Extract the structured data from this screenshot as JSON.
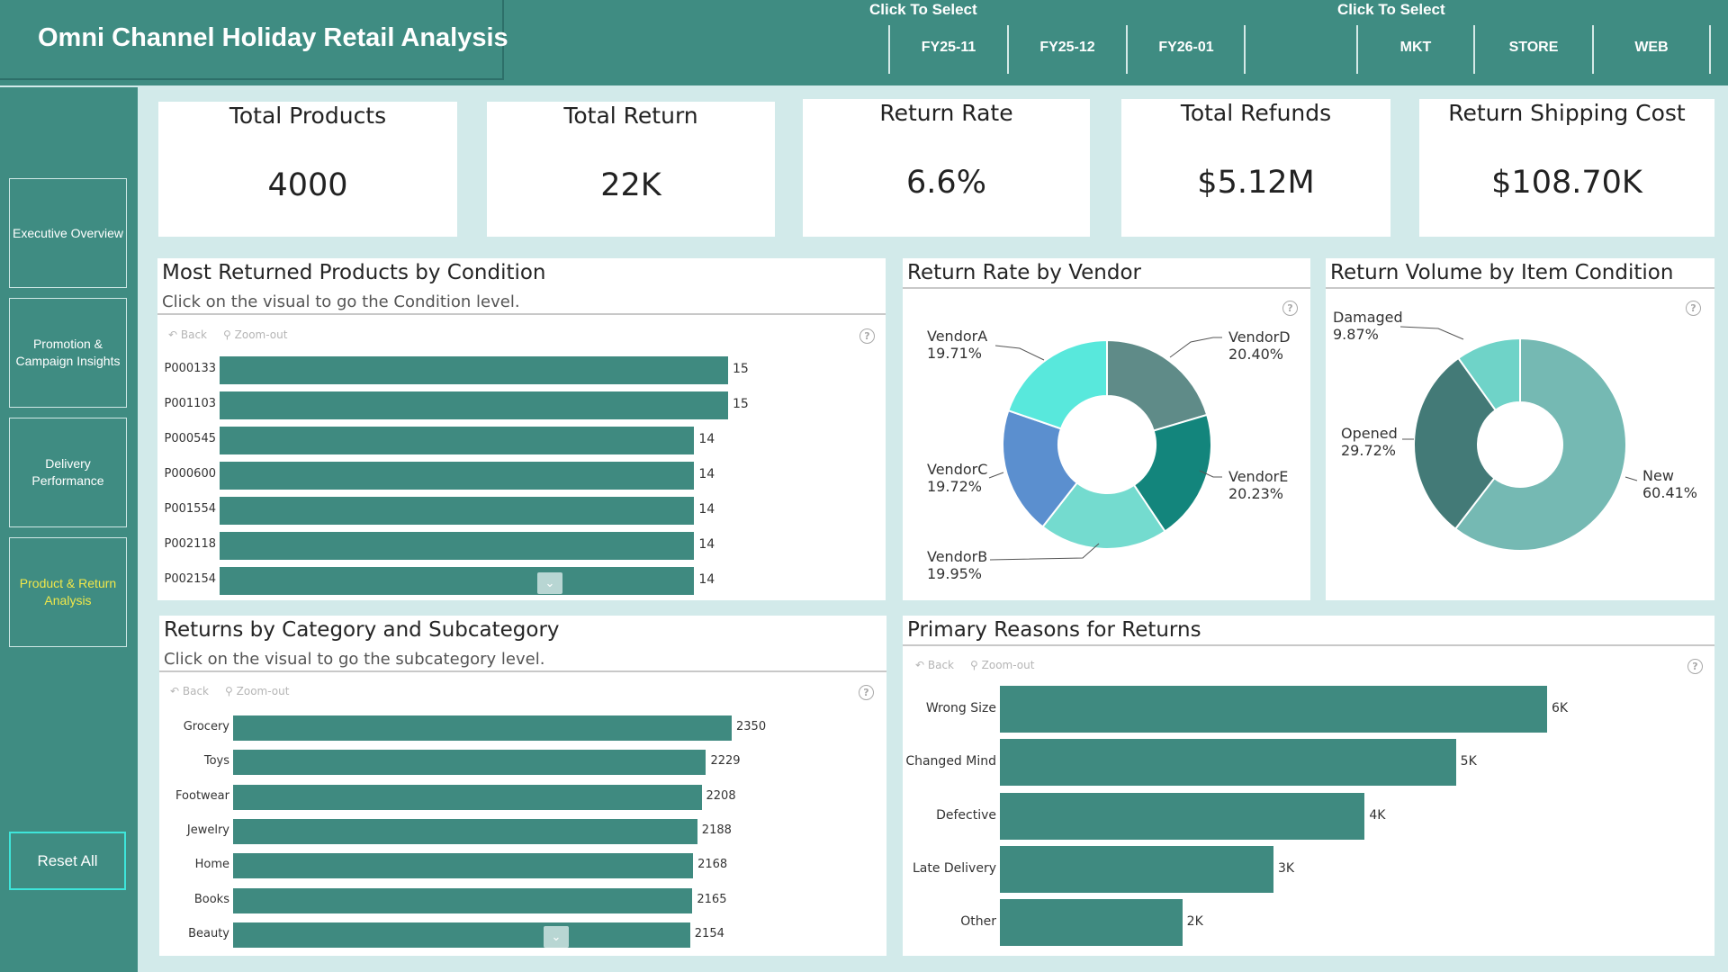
{
  "header": {
    "title": "Omni Channel Holiday Retail Analysis",
    "slicer_month_caption": "Click To Select",
    "slicer_channel_caption": "Click To Select",
    "months": [
      "FY25-11",
      "FY25-12",
      "FY26-01"
    ],
    "channels": [
      "MKT",
      "STORE",
      "WEB"
    ]
  },
  "sidebar": {
    "items": [
      {
        "label": "Executive Overview",
        "active": false
      },
      {
        "label": "Promotion & Campaign Insights",
        "active": false
      },
      {
        "label": "Delivery Performance",
        "active": false
      },
      {
        "label": "Product & Return Analysis",
        "active": true
      }
    ],
    "reset_label": "Reset All"
  },
  "kpis": [
    {
      "label": "Total Products",
      "value": "4000"
    },
    {
      "label": "Total Return",
      "value": "22K"
    },
    {
      "label": "Return Rate",
      "value": "6.6%"
    },
    {
      "label": "Total Refunds",
      "value": "$5.12M"
    },
    {
      "label": "Return Shipping Cost",
      "value": "$108.70K"
    }
  ],
  "toolbar": {
    "back": "Back",
    "zoom_out": "Zoom-out",
    "help": "?"
  },
  "panels": {
    "most_returned": {
      "title": "Most Returned Products by Condition",
      "subtitle": "Click on the visual to go  the Condition level."
    },
    "vendor": {
      "title": "Return Rate by Vendor"
    },
    "item_condition": {
      "title": "Return Volume by Item Condition"
    },
    "category": {
      "title": "Returns by Category and Subcategory",
      "subtitle": "Click on the visual to go the subcategory level."
    },
    "reasons": {
      "title": "Primary Reasons for Returns"
    }
  },
  "chart_data": [
    {
      "type": "bar",
      "orientation": "horizontal",
      "title": "Most Returned Products by Condition",
      "categories": [
        "P000133",
        "P001103",
        "P000545",
        "P000600",
        "P001554",
        "P002118",
        "P002154"
      ],
      "values": [
        15,
        15,
        14,
        14,
        14,
        14,
        14
      ],
      "labels": [
        "15",
        "15",
        "14",
        "14",
        "14",
        "14",
        "14"
      ],
      "max": 15,
      "color": "#3f8a80"
    },
    {
      "type": "pie",
      "variant": "donut",
      "title": "Return Rate by Vendor",
      "slices": [
        {
          "name": "VendorD",
          "value": 20.4,
          "label": "20.40%",
          "color": "#5f8b88"
        },
        {
          "name": "VendorE",
          "value": 20.23,
          "label": "20.23%",
          "color": "#13857c"
        },
        {
          "name": "VendorB",
          "value": 19.95,
          "label": "19.95%",
          "color": "#74dbcf"
        },
        {
          "name": "VendorC",
          "value": 19.72,
          "label": "19.72%",
          "color": "#5b8fcf"
        },
        {
          "name": "VendorA",
          "value": 19.71,
          "label": "19.71%",
          "color": "#58e8dc"
        }
      ]
    },
    {
      "type": "pie",
      "variant": "donut",
      "title": "Return Volume by Item Condition",
      "slices": [
        {
          "name": "New",
          "value": 60.41,
          "label": "60.41%",
          "color": "#75b9b3"
        },
        {
          "name": "Opened",
          "value": 29.72,
          "label": "29.72%",
          "color": "#437a77"
        },
        {
          "name": "Damaged",
          "value": 9.87,
          "label": "9.87%",
          "color": "#6fd3c8"
        }
      ]
    },
    {
      "type": "bar",
      "orientation": "horizontal",
      "title": "Returns by Category and Subcategory",
      "categories": [
        "Grocery",
        "Toys",
        "Footwear",
        "Jewelry",
        "Home",
        "Books",
        "Beauty"
      ],
      "values": [
        2350,
        2229,
        2208,
        2188,
        2168,
        2165,
        2154
      ],
      "labels": [
        "2350",
        "2229",
        "2208",
        "2188",
        "2168",
        "2165",
        "2154"
      ],
      "max": 2350,
      "color": "#3f8a80"
    },
    {
      "type": "bar",
      "orientation": "horizontal",
      "title": "Primary Reasons for Returns",
      "categories": [
        "Wrong Size",
        "Changed Mind",
        "Defective",
        "Late Delivery",
        "Other"
      ],
      "values": [
        6000,
        5000,
        4000,
        3000,
        2000
      ],
      "labels": [
        "6K",
        "5K",
        "4K",
        "3K",
        "2K"
      ],
      "max": 6000,
      "color": "#3f8a80"
    }
  ]
}
